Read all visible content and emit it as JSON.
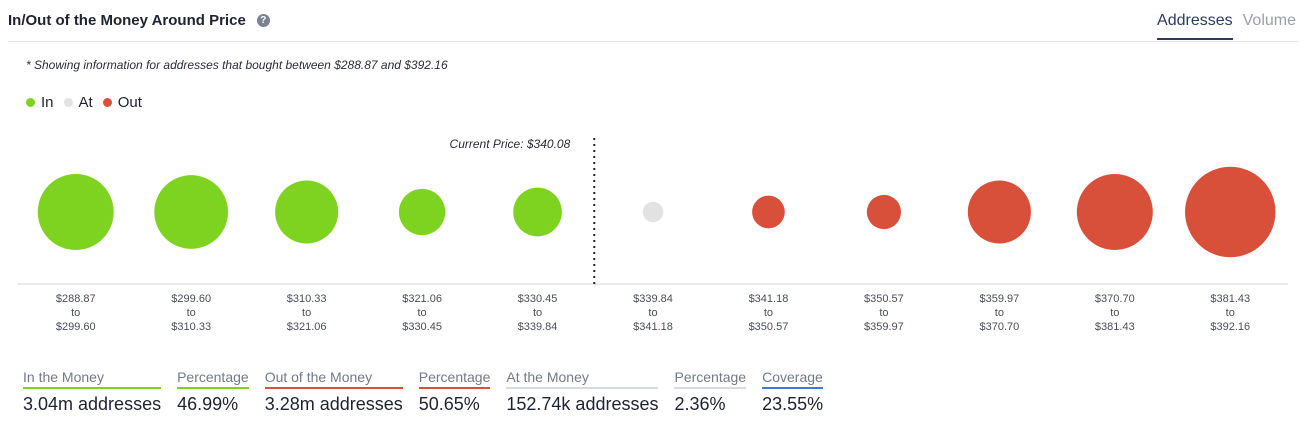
{
  "header": {
    "title": "In/Out of the Money Around Price",
    "help_icon": "question-circle-icon",
    "tabs": [
      {
        "label": "Addresses",
        "active": true
      },
      {
        "label": "Volume",
        "active": false
      }
    ]
  },
  "note": "* Showing information for addresses that bought between $288.87 and $392.16",
  "legend": [
    {
      "label": "In",
      "color": "#7ed321"
    },
    {
      "label": "At",
      "color": "#e2e2e2"
    },
    {
      "label": "Out",
      "color": "#d9503a"
    }
  ],
  "chart_data": {
    "type": "scatter",
    "current_price_label": "Current Price: $340.08",
    "buckets": [
      {
        "from": "$288.87",
        "to": "$299.60",
        "status": "in",
        "size": 1.0
      },
      {
        "from": "$299.60",
        "to": "$310.33",
        "status": "in",
        "size": 0.97
      },
      {
        "from": "$310.33",
        "to": "$321.06",
        "status": "in",
        "size": 0.83
      },
      {
        "from": "$321.06",
        "to": "$330.45",
        "status": "in",
        "size": 0.61
      },
      {
        "from": "$330.45",
        "to": "$339.84",
        "status": "in",
        "size": 0.64
      },
      {
        "from": "$339.84",
        "to": "$341.18",
        "status": "at",
        "size": 0.27
      },
      {
        "from": "$341.18",
        "to": "$350.57",
        "status": "out",
        "size": 0.43
      },
      {
        "from": "$350.57",
        "to": "$359.97",
        "status": "out",
        "size": 0.45
      },
      {
        "from": "$359.97",
        "to": "$370.70",
        "status": "out",
        "size": 0.83
      },
      {
        "from": "$370.70",
        "to": "$381.43",
        "status": "out",
        "size": 1.0
      },
      {
        "from": "$381.43",
        "to": "$392.16",
        "status": "out",
        "size": 1.19
      }
    ],
    "range_connector": "to",
    "current_price_after_index": 4
  },
  "stats": [
    {
      "label": "In the Money",
      "value": "3.04m addresses",
      "accent": "#7ed321"
    },
    {
      "label": "Percentage",
      "value": "46.99%",
      "accent": "#7ed321"
    },
    {
      "label": "Out of the Money",
      "value": "3.28m addresses",
      "accent": "#d9503a"
    },
    {
      "label": "Percentage",
      "value": "50.65%",
      "accent": "#d9503a"
    },
    {
      "label": "At the Money",
      "value": "152.74k addresses",
      "accent": "#d8dbe0"
    },
    {
      "label": "Percentage",
      "value": "2.36%",
      "accent": "#d8dbe0"
    },
    {
      "label": "Coverage",
      "value": "23.55%",
      "accent": "#3b7dd8"
    }
  ]
}
